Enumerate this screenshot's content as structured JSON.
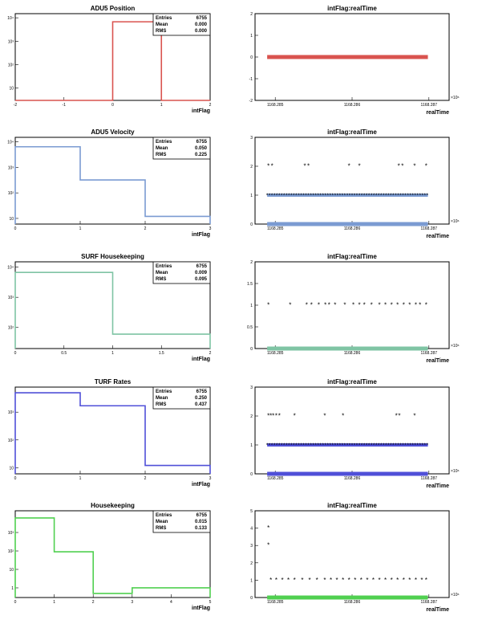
{
  "panels": [
    {
      "title": "ADU5 Position",
      "xlabel": "intFlag",
      "stats": {
        "entries_label": "Entries",
        "entries": "6755",
        "mean_label": "Mean",
        "mean": "0.000",
        "rms_label": "RMS",
        "rms": "0.000"
      },
      "color": "#d9534f",
      "xticks": [
        "-2",
        "-1",
        "0",
        "1",
        "2"
      ],
      "yticks": [
        "10",
        "10²",
        "10³",
        "10⁴"
      ]
    },
    {
      "title": "ADU5 Velocity",
      "xlabel": "intFlag",
      "stats": {
        "entries_label": "Entries",
        "entries": "6755",
        "mean_label": "Mean",
        "mean": "0.050",
        "rms_label": "RMS",
        "rms": "0.225"
      },
      "color": "#7b9bd2",
      "xticks": [
        "0",
        "1",
        "2",
        "3"
      ],
      "yticks": [
        "10",
        "10²",
        "10³",
        "10⁴"
      ]
    },
    {
      "title": "SURF Housekeeping",
      "xlabel": "intFlag",
      "stats": {
        "entries_label": "Entries",
        "entries": "6755",
        "mean_label": "Mean",
        "mean": "0.009",
        "rms_label": "RMS",
        "rms": "0.095"
      },
      "color": "#7fc4a4",
      "xticks": [
        "0",
        "0.5",
        "1",
        "1.5",
        "2"
      ],
      "yticks": [
        "10²",
        "10³",
        "10⁴"
      ]
    },
    {
      "title": "TURF Rates",
      "xlabel": "intFlag",
      "stats": {
        "entries_label": "Entries",
        "entries": "6755",
        "mean_label": "Mean",
        "mean": "0.250",
        "rms_label": "RMS",
        "rms": "0.437"
      },
      "color": "#5050d8",
      "xticks": [
        "0",
        "1",
        "2",
        "3"
      ],
      "yticks": [
        "10",
        "10²",
        "10³"
      ]
    },
    {
      "title": "Housekeeping",
      "xlabel": "intFlag",
      "stats": {
        "entries_label": "Entries",
        "entries": "6755",
        "mean_label": "Mean",
        "mean": "0.015",
        "rms_label": "RMS",
        "rms": "0.133"
      },
      "color": "#50d050",
      "xticks": [
        "0",
        "1",
        "2",
        "3",
        "4",
        "5"
      ],
      "yticks": [
        "1",
        "10",
        "10²",
        "10³"
      ]
    }
  ],
  "scatter_common": {
    "title": "intFlag:realTime",
    "xlabel": "realTime",
    "exponent": "×10⁶",
    "xticks": [
      "1168.285",
      "1168.286",
      "1168.287"
    ]
  },
  "chart_data": [
    {
      "type": "bar",
      "title": "ADU5 Position",
      "xlabel": "intFlag",
      "ylabel": "",
      "log_y": true,
      "bin_edges": [
        -2,
        0,
        1,
        2
      ],
      "values": [
        0,
        6755,
        0
      ],
      "xlim": [
        -2,
        2
      ],
      "ylim": [
        3,
        15000
      ],
      "color": "#d9534f"
    },
    {
      "type": "scatter",
      "title": "intFlag:realTime",
      "xlabel": "realTime",
      "xunit": "×10⁶",
      "xlim": [
        1168284.4,
        1168287.6
      ],
      "ylim": [
        -2,
        2
      ],
      "yticks": [
        -2,
        -1,
        0,
        1,
        2
      ],
      "series": [
        {
          "color": "#d9534f",
          "band": [
            1168284.6,
            1168287.25
          ],
          "y": 0,
          "points": []
        }
      ]
    },
    {
      "type": "bar",
      "title": "ADU5 Velocity",
      "xlabel": "intFlag",
      "ylabel": "",
      "log_y": true,
      "bin_edges": [
        0,
        1,
        2,
        3
      ],
      "values": [
        6400,
        320,
        12
      ],
      "xlim": [
        0,
        3
      ],
      "ylim": [
        6,
        15000
      ],
      "color": "#7b9bd2"
    },
    {
      "type": "scatter",
      "title": "intFlag:realTime",
      "xlabel": "realTime",
      "xunit": "×10⁶",
      "xlim": [
        1168284.4,
        1168287.6
      ],
      "ylim": [
        0,
        3
      ],
      "yticks": [
        0,
        1,
        2,
        3
      ],
      "series": [
        {
          "color": "#7b9bd2",
          "band": [
            1168284.6,
            1168287.25
          ],
          "y": 0,
          "points": [
            [
              1168284.62,
              2
            ],
            [
              1168284.68,
              2
            ],
            [
              1168285.22,
              2
            ],
            [
              1168285.28,
              2
            ],
            [
              1168285.95,
              2
            ],
            [
              1168286.12,
              2
            ],
            [
              1168286.77,
              2
            ],
            [
              1168286.83,
              2
            ],
            [
              1168287.03,
              2
            ],
            [
              1168287.22,
              2
            ]
          ],
          "line1": [
            1168284.6,
            1168287.25
          ]
        }
      ]
    },
    {
      "type": "bar",
      "title": "SURF Housekeeping",
      "xlabel": "intFlag",
      "ylabel": "",
      "log_y": true,
      "bin_edges": [
        0,
        1,
        2
      ],
      "values": [
        6700,
        60
      ],
      "xlim": [
        0,
        2
      ],
      "ylim": [
        20,
        15000
      ],
      "color": "#7fc4a4"
    },
    {
      "type": "scatter",
      "title": "intFlag:realTime",
      "xlabel": "realTime",
      "xunit": "×10⁶",
      "xlim": [
        1168284.4,
        1168287.6
      ],
      "ylim": [
        0,
        2
      ],
      "yticks": [
        0,
        0.5,
        1,
        1.5,
        2
      ],
      "series": [
        {
          "color": "#7fc4a4",
          "band": [
            1168284.6,
            1168287.25
          ],
          "y": 0,
          "points": [
            [
              1168284.62,
              1
            ],
            [
              1168284.98,
              1
            ],
            [
              1168285.25,
              1
            ],
            [
              1168285.33,
              1
            ],
            [
              1168285.45,
              1
            ],
            [
              1168285.56,
              1
            ],
            [
              1168285.62,
              1
            ],
            [
              1168285.72,
              1
            ],
            [
              1168285.88,
              1
            ],
            [
              1168286.02,
              1
            ],
            [
              1168286.12,
              1
            ],
            [
              1168286.2,
              1
            ],
            [
              1168286.32,
              1
            ],
            [
              1168286.45,
              1
            ],
            [
              1168286.55,
              1
            ],
            [
              1168286.65,
              1
            ],
            [
              1168286.75,
              1
            ],
            [
              1168286.85,
              1
            ],
            [
              1168286.95,
              1
            ],
            [
              1168287.05,
              1
            ],
            [
              1168287.12,
              1
            ],
            [
              1168287.22,
              1
            ]
          ]
        }
      ]
    },
    {
      "type": "bar",
      "title": "TURF Rates",
      "xlabel": "intFlag",
      "ylabel": "",
      "log_y": true,
      "bin_edges": [
        0,
        1,
        2,
        3
      ],
      "values": [
        5000,
        1700,
        12
      ],
      "xlim": [
        0,
        3
      ],
      "ylim": [
        6,
        8000
      ],
      "color": "#5050d8"
    },
    {
      "type": "scatter",
      "title": "intFlag:realTime",
      "xlabel": "realTime",
      "xunit": "×10⁶",
      "xlim": [
        1168284.4,
        1168287.6
      ],
      "ylim": [
        0,
        3
      ],
      "yticks": [
        0,
        1,
        2,
        3
      ],
      "series": [
        {
          "color": "#5050d8",
          "band": [
            1168284.6,
            1168287.25
          ],
          "y": 0,
          "points": [
            [
              1168284.62,
              2
            ],
            [
              1168284.66,
              2
            ],
            [
              1168284.7,
              2
            ],
            [
              1168284.75,
              2
            ],
            [
              1168284.8,
              2
            ],
            [
              1168285.05,
              2
            ],
            [
              1168285.55,
              2
            ],
            [
              1168285.85,
              2
            ],
            [
              1168286.73,
              2
            ],
            [
              1168286.78,
              2
            ],
            [
              1168287.03,
              2
            ]
          ],
          "line1": [
            1168284.6,
            1168287.25
          ]
        }
      ]
    },
    {
      "type": "bar",
      "title": "Housekeeping",
      "xlabel": "intFlag",
      "ylabel": "",
      "log_y": true,
      "bin_edges": [
        0,
        1,
        2,
        3,
        5
      ],
      "values": [
        6100,
        90,
        0.5,
        1
      ],
      "xlim": [
        0,
        5
      ],
      "ylim": [
        0.3,
        15000
      ],
      "color": "#50d050"
    },
    {
      "type": "scatter",
      "title": "intFlag:realTime",
      "xlabel": "realTime",
      "xunit": "×10⁶",
      "xlim": [
        1168284.4,
        1168287.6
      ],
      "ylim": [
        0,
        5
      ],
      "yticks": [
        0,
        1,
        2,
        3,
        4,
        5
      ],
      "series": [
        {
          "color": "#50d050",
          "band": [
            1168284.6,
            1168287.25
          ],
          "y": 0,
          "points": [
            [
              1168284.62,
              4
            ],
            [
              1168284.62,
              3
            ],
            [
              1168284.66,
              1
            ],
            [
              1168284.75,
              1
            ],
            [
              1168284.85,
              1
            ],
            [
              1168284.95,
              1
            ],
            [
              1168285.05,
              1
            ],
            [
              1168285.18,
              1
            ],
            [
              1168285.3,
              1
            ],
            [
              1168285.42,
              1
            ],
            [
              1168285.55,
              1
            ],
            [
              1168285.65,
              1
            ],
            [
              1168285.75,
              1
            ],
            [
              1168285.85,
              1
            ],
            [
              1168285.95,
              1
            ],
            [
              1168286.05,
              1
            ],
            [
              1168286.15,
              1
            ],
            [
              1168286.25,
              1
            ],
            [
              1168286.35,
              1
            ],
            [
              1168286.45,
              1
            ],
            [
              1168286.55,
              1
            ],
            [
              1168286.65,
              1
            ],
            [
              1168286.75,
              1
            ],
            [
              1168286.85,
              1
            ],
            [
              1168286.95,
              1
            ],
            [
              1168287.05,
              1
            ],
            [
              1168287.15,
              1
            ],
            [
              1168287.22,
              1
            ]
          ]
        }
      ]
    }
  ]
}
